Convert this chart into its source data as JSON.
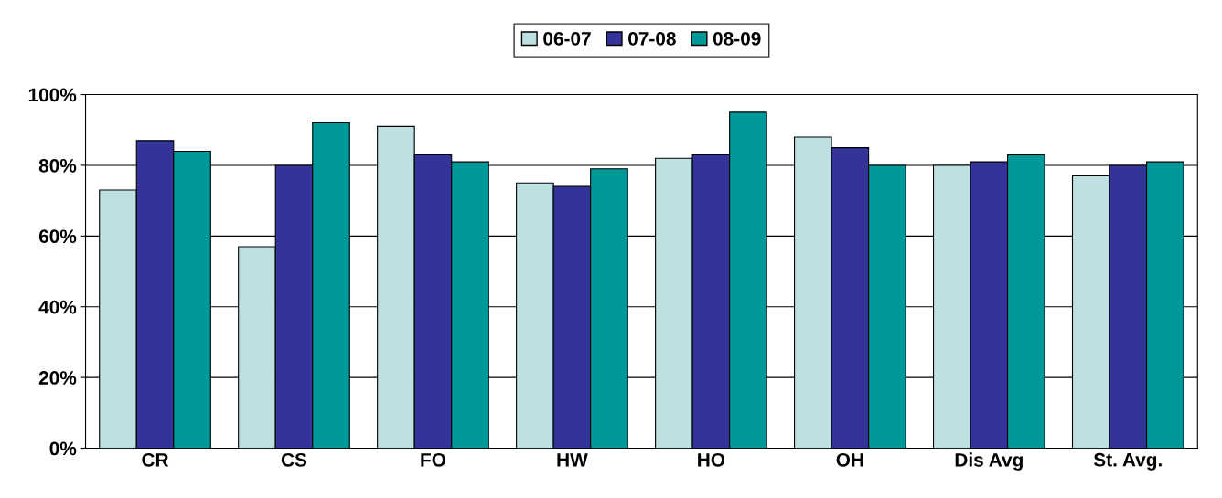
{
  "chart_data": {
    "type": "bar",
    "categories": [
      "CR",
      "CS",
      "FO",
      "HW",
      "HO",
      "OH",
      "Dis Avg",
      "St. Avg."
    ],
    "series": [
      {
        "name": "06-07",
        "color": "#bde0e3",
        "values": [
          73,
          57,
          91,
          75,
          82,
          88,
          80,
          77
        ]
      },
      {
        "name": "07-08",
        "color": "#333399",
        "values": [
          87,
          80,
          83,
          74,
          83,
          85,
          81,
          80
        ]
      },
      {
        "name": "08-09",
        "color": "#009999",
        "values": [
          84,
          92,
          81,
          79,
          95,
          80,
          83,
          81
        ]
      }
    ],
    "ylim": [
      0,
      100
    ],
    "yticks": [
      {
        "value": 0,
        "label": "0%"
      },
      {
        "value": 20,
        "label": "20%"
      },
      {
        "value": 40,
        "label": "40%"
      },
      {
        "value": 60,
        "label": "60%"
      },
      {
        "value": 80,
        "label": "80%"
      },
      {
        "value": 100,
        "label": "100%"
      }
    ],
    "grid": "y",
    "legend": "top"
  }
}
